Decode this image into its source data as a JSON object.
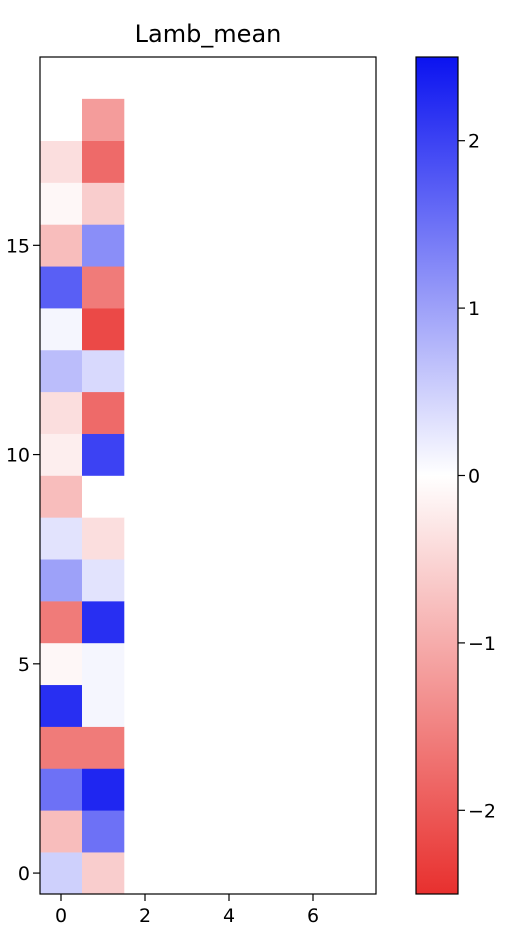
{
  "chart_data": {
    "type": "heatmap",
    "title": "Lamb_mean",
    "xlabel": "",
    "ylabel": "",
    "origin": "lower",
    "xlim": [
      -0.5,
      7.5
    ],
    "ylim": [
      -0.5,
      19.5
    ],
    "x_ticks": [
      0,
      2,
      4,
      6
    ],
    "x_tick_labels": [
      "0",
      "2",
      "4",
      "6"
    ],
    "y_ticks": [
      0,
      5,
      10,
      15
    ],
    "y_tick_labels": [
      "0",
      "5",
      "10",
      "15"
    ],
    "colormap": "bwr_r",
    "vmin": -2.5,
    "vmax": 2.5,
    "colorbar": {
      "ticks": [
        -2,
        -1,
        0,
        1,
        2
      ],
      "tick_labels": [
        "−2",
        "−1",
        "0",
        "1",
        "2"
      ],
      "low_color": "#e8302e",
      "mid_color": "#ffffff",
      "high_color": "#0b13f0"
    },
    "columns": [
      0,
      1
    ],
    "rows": [
      [
        0.5,
        -0.6
      ],
      [
        -0.8,
        1.5
      ],
      [
        1.5,
        2.3
      ],
      [
        -1.6,
        -1.6
      ],
      [
        2.2,
        0.1
      ],
      [
        -0.1,
        0.1
      ],
      [
        -1.6,
        2.2
      ],
      [
        1.0,
        0.3
      ],
      [
        0.3,
        -0.4
      ],
      [
        -0.8,
        0.0
      ],
      [
        -0.2,
        2.0
      ],
      [
        -0.4,
        -1.8
      ],
      [
        0.7,
        0.4
      ],
      [
        0.1,
        -2.2
      ],
      [
        1.7,
        -1.6
      ],
      [
        -0.8,
        1.2
      ],
      [
        -0.1,
        -0.6
      ],
      [
        -0.4,
        -1.8
      ],
      [
        0.0,
        -1.2
      ]
    ],
    "blank_cell_color": "#ffffff"
  }
}
